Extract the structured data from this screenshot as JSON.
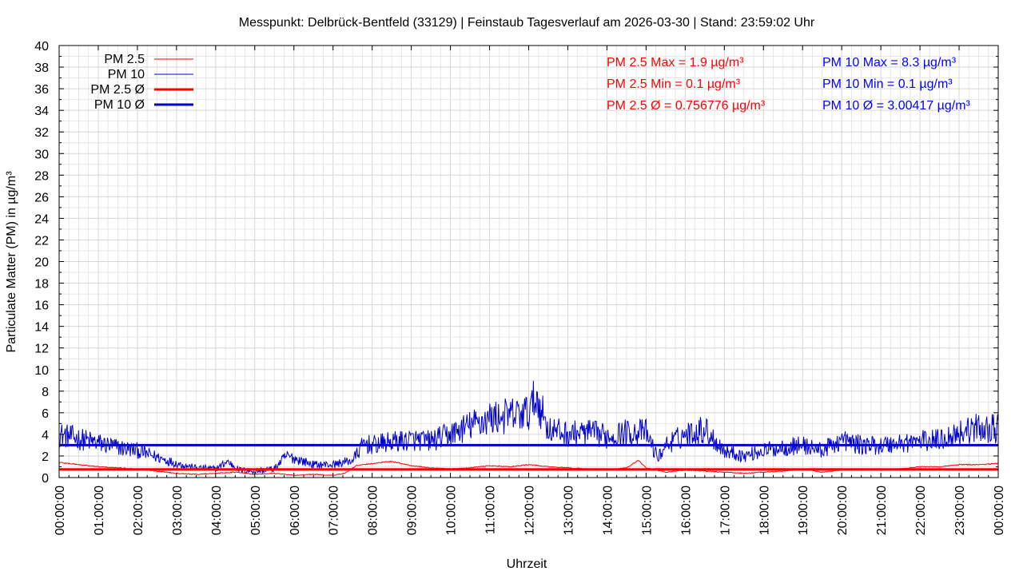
{
  "chart_data": {
    "type": "line",
    "title": "Messpunkt: Delbrück-Bentfeld (33129) | Feinstaub Tagesverlauf am 2026-03-30 | Stand: 23:59:02 Uhr",
    "xlabel": "Uhrzeit",
    "ylabel": "Particulate Matter (PM) in µg/m³",
    "ylim": [
      0,
      40
    ],
    "y_ticks": [
      0,
      2,
      4,
      6,
      8,
      10,
      12,
      14,
      16,
      18,
      20,
      22,
      24,
      26,
      28,
      30,
      32,
      34,
      36,
      38,
      40
    ],
    "x_ticks": [
      "00:00:00",
      "01:00:00",
      "02:00:00",
      "03:00:00",
      "04:00:00",
      "05:00:00",
      "06:00:00",
      "07:00:00",
      "08:00:00",
      "09:00:00",
      "10:00:00",
      "11:00:00",
      "12:00:00",
      "13:00:00",
      "14:00:00",
      "15:00:00",
      "16:00:00",
      "17:00:00",
      "18:00:00",
      "19:00:00",
      "20:00:00",
      "21:00:00",
      "22:00:00",
      "23:00:00",
      "00:00:00"
    ],
    "grid": true,
    "legend_position": "top-left",
    "series": [
      {
        "name": "PM 2.5",
        "color": "#ff0000",
        "x_hours": [
          0,
          0.5,
          1,
          1.5,
          2,
          2.5,
          3,
          3.5,
          4,
          4.5,
          5,
          5.5,
          6,
          6.5,
          7,
          7.3,
          7.6,
          8,
          8.5,
          9,
          9.5,
          10,
          10.5,
          11,
          11.5,
          12,
          12.5,
          13,
          13.5,
          14,
          14.5,
          14.8,
          15,
          15.5,
          16,
          16.5,
          17,
          17.5,
          18,
          18.5,
          19,
          19.5,
          20,
          20.5,
          21,
          21.5,
          22,
          22.5,
          23,
          23.5,
          24
        ],
        "values": [
          1.4,
          1.2,
          1.0,
          0.9,
          0.8,
          0.6,
          0.4,
          0.3,
          0.4,
          0.5,
          0.3,
          0.4,
          0.2,
          0.3,
          0.2,
          0.4,
          1.1,
          1.3,
          1.5,
          1.1,
          0.9,
          0.8,
          0.9,
          1.1,
          1.0,
          1.2,
          1.0,
          0.9,
          0.8,
          0.7,
          0.9,
          1.6,
          0.9,
          0.5,
          0.7,
          0.6,
          0.5,
          0.4,
          0.5,
          0.6,
          0.8,
          0.5,
          0.7,
          0.8,
          0.7,
          0.8,
          1.0,
          1.0,
          1.2,
          1.2,
          1.3
        ]
      },
      {
        "name": "PM 10",
        "color": "#0000cc",
        "x_hours": [
          0,
          0.5,
          1,
          1.5,
          2,
          2.5,
          3,
          3.5,
          4,
          4.3,
          4.6,
          5,
          5.5,
          5.8,
          6,
          6.5,
          7,
          7.5,
          7.8,
          8,
          8.5,
          9,
          9.5,
          10,
          10.5,
          11,
          11.5,
          12,
          12.2,
          12.5,
          13,
          13.5,
          14,
          14.5,
          15,
          15.3,
          15.5,
          16,
          16.5,
          17,
          17.5,
          18,
          18.5,
          19,
          19.5,
          20,
          20.5,
          21,
          21.5,
          22,
          22.5,
          23,
          23.5,
          24
        ],
        "values": [
          4.0,
          3.6,
          3.2,
          2.8,
          2.5,
          1.9,
          1.3,
          0.9,
          0.8,
          1.5,
          0.7,
          0.6,
          0.8,
          2.0,
          1.8,
          1.2,
          1.2,
          1.6,
          3.2,
          3.0,
          3.3,
          3.5,
          3.4,
          4.0,
          4.8,
          5.5,
          5.7,
          6.0,
          7.5,
          4.5,
          4.0,
          4.2,
          3.8,
          4.2,
          4.2,
          1.8,
          3.0,
          4.0,
          4.5,
          2.5,
          2.0,
          2.5,
          2.8,
          3.0,
          2.5,
          3.5,
          3.0,
          3.0,
          3.2,
          3.4,
          3.5,
          4.2,
          4.6,
          4.5
        ]
      },
      {
        "name": "PM 2.5 Ø",
        "color": "#ff0000",
        "value": 0.756776
      },
      {
        "name": "PM 10 Ø",
        "color": "#0000cc",
        "value": 3.00417
      }
    ],
    "annotations": {
      "pm25_max": "PM 2.5 Max = 1.9 µg/m³",
      "pm25_min": "PM 2.5 Min = 0.1 µg/m³",
      "pm25_avg": "PM 2.5 Ø = 0.756776 µg/m³",
      "pm10_max": "PM 10 Max = 8.3 µg/m³",
      "pm10_min": "PM 10 Min = 0.1 µg/m³",
      "pm10_avg": "PM 10 Ø = 3.00417 µg/m³"
    }
  }
}
